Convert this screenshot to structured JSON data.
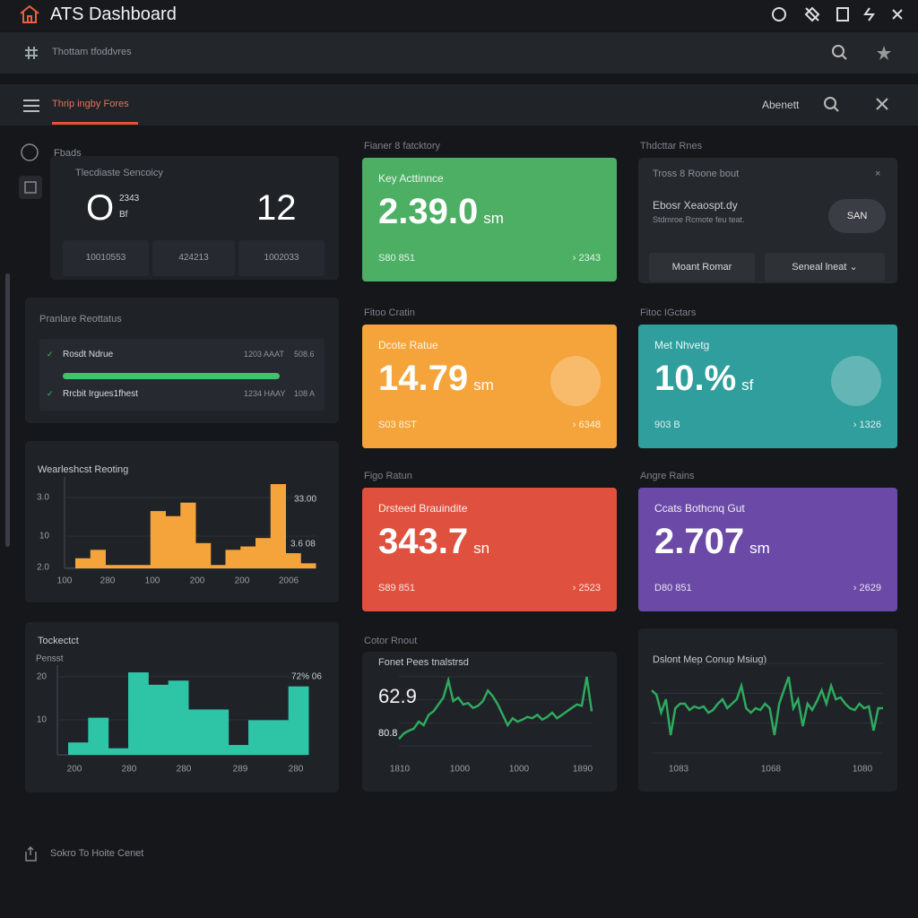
{
  "header": {
    "title": "ATS Dashboard"
  },
  "toolbar": {
    "label": "Thottam tfoddvres"
  },
  "nav": {
    "tab": "Thrip ingby Fores",
    "action": "Abenett"
  },
  "sidebar": {
    "label": "Fbads"
  },
  "summary": {
    "title": "Tlecdiaste Sencoicy",
    "big_left": "O",
    "small_top": "2343",
    "small_bottom": "Bf",
    "big_right": "12",
    "cells": [
      "10010553",
      "424213",
      "1002033"
    ]
  },
  "progress": {
    "title": "Pranlare Reottatus",
    "rows": [
      {
        "label": "Rosdt Ndrue",
        "meta": "1203 AAAT",
        "value": "508.6"
      },
      {
        "label": "Rrcbit Irgues1fhest",
        "meta": "1234 HAAY",
        "value": "108 A"
      }
    ]
  },
  "kpis": [
    {
      "caption": "Fianer 8 fatcktory",
      "title": "Key Acttinnce",
      "value": "2.39.0",
      "unit": "sm",
      "foot_left": "S80 851",
      "foot_right": "2343",
      "color": "#4caf64"
    },
    {
      "caption": "Fitoo Cratin",
      "title": "Dcote Ratue",
      "value": "14.79",
      "unit": "sm",
      "foot_left": "S03 8ST",
      "foot_right": "6348",
      "color": "#f4a43a"
    },
    {
      "caption": "Fitoc IGctars",
      "title": "Met Nhvetg",
      "value": "10.%",
      "unit": "sf",
      "foot_left": "903 B",
      "foot_right": "1326",
      "color": "#2f9e9c"
    },
    {
      "caption": "Figo Ratun",
      "title": "Drsteed Brauindite",
      "value": "343.7",
      "unit": "sn",
      "foot_left": "S89 851",
      "foot_right": "2523",
      "color": "#e0503e"
    },
    {
      "caption": "Angre Rains",
      "title": "Ccats Bothcnq Gut",
      "value": "2.707",
      "unit": "sm",
      "foot_left": "D80 851",
      "foot_right": "2629",
      "color": "#6a4aa6"
    }
  ],
  "notice": {
    "caption": "Thdcttar Rnes",
    "title": "Tross 8 Roone bout",
    "text": "Ebosr Xeaospt.dy",
    "sub": "Stdmroe Rcmote feu teat.",
    "button": "SAN",
    "actions": [
      "Moant Romar",
      "Seneal lneat"
    ]
  },
  "charts": [
    {
      "type": "bar",
      "title": "Wearleshcst Reoting",
      "color": "#f4a43a",
      "ylim": [
        0,
        100
      ],
      "ytick_labels": [
        "3.0",
        "10",
        "2.0"
      ],
      "x_labels": [
        "100",
        "280",
        "100",
        "200",
        "200",
        "2006"
      ],
      "annotations": [
        "33.00",
        "3.6 08"
      ],
      "values": [
        12,
        22,
        4,
        4,
        4,
        68,
        62,
        78,
        30,
        4,
        22,
        26,
        36,
        100,
        18,
        6
      ]
    },
    {
      "type": "bar",
      "title": "Tockectct",
      "subtitle": "Pensst",
      "color": "#2ec4a6",
      "ylim": [
        0,
        100
      ],
      "ytick_labels": [
        "20",
        "10"
      ],
      "x_labels": [
        "200",
        "280",
        "280",
        "289",
        "280"
      ],
      "annotations": [
        "72% 06"
      ],
      "values": [
        15,
        45,
        8,
        100,
        85,
        90,
        55,
        55,
        12,
        42,
        42,
        83
      ]
    },
    {
      "type": "line",
      "caption": "Cotor Rnout",
      "title": "Fonet Pees tnalstrsd",
      "color": "#2eaa5e",
      "ylim": [
        0,
        100
      ],
      "annotations": [
        "62.9",
        "80.8"
      ],
      "x_labels": [
        "1810",
        "1000",
        "1000",
        "1890"
      ],
      "values": [
        10,
        18,
        22,
        25,
        35,
        30,
        45,
        50,
        60,
        70,
        95,
        65,
        70,
        60,
        62,
        55,
        58,
        65,
        80,
        72,
        60,
        45,
        30,
        40,
        35,
        38,
        42,
        40,
        45,
        38,
        42,
        48,
        40,
        45,
        50,
        55,
        60,
        58,
        100,
        50
      ]
    },
    {
      "type": "line",
      "title": "Dslont Mep Conup Msiug)",
      "color": "#2eaa5e",
      "ylim": [
        0,
        100
      ],
      "x_labels": [
        "1083",
        "1068",
        "1080"
      ],
      "values": [
        70,
        65,
        45,
        60,
        20,
        50,
        55,
        55,
        48,
        52,
        50,
        52,
        45,
        48,
        55,
        60,
        50,
        55,
        60,
        75,
        50,
        45,
        50,
        48,
        55,
        50,
        20,
        55,
        70,
        85,
        50,
        60,
        30,
        55,
        48,
        58,
        70,
        55,
        75,
        60,
        62,
        55,
        50,
        48,
        55,
        50,
        52,
        25,
        50,
        50
      ]
    }
  ],
  "footer": {
    "label": "Sokro To Hoite Cenet"
  }
}
